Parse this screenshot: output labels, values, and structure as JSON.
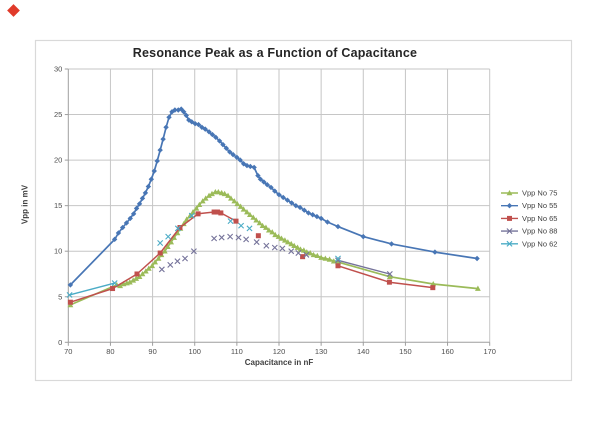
{
  "page": {
    "background": "#ffffff",
    "frame_border_color": "#d9d9d9"
  },
  "decorations": {
    "corner_dot_color": "#e03a2a"
  },
  "chart_data": {
    "type": "line",
    "title": "Resonance Peak as a Function of Capacitance",
    "xlabel": "Capacitance in nF",
    "ylabel": "Vpp in mV",
    "xlim": [
      70,
      170
    ],
    "ylim": [
      0,
      30
    ],
    "xticks": [
      70,
      80,
      90,
      100,
      110,
      120,
      130,
      140,
      150,
      160,
      170
    ],
    "yticks": [
      0,
      5,
      10,
      15,
      20,
      25,
      30
    ],
    "grid": true,
    "legend_position": "right",
    "series": [
      {
        "name": "Vpp No 75",
        "color": "#9BBB59",
        "marker": "triangle",
        "line_width": 1.7,
        "segments": [
          [
            [
              70.5,
              4.1
            ],
            [
              81.5,
              6.3
            ],
            [
              82.3,
              6.2
            ],
            [
              83.1,
              6.4
            ],
            [
              83.9,
              6.5
            ],
            [
              84.6,
              6.6
            ],
            [
              85.4,
              6.8
            ],
            [
              86.1,
              7.0
            ],
            [
              86.9,
              7.2
            ],
            [
              87.6,
              7.5
            ],
            [
              88.4,
              7.8
            ],
            [
              89.1,
              8.1
            ],
            [
              89.9,
              8.4
            ],
            [
              90.6,
              8.8
            ],
            [
              91.4,
              9.2
            ],
            [
              92.1,
              9.6
            ],
            [
              92.9,
              10.0
            ],
            [
              93.6,
              10.5
            ],
            [
              94.4,
              11.0
            ],
            [
              95.1,
              11.5
            ],
            [
              95.9,
              12.0
            ],
            [
              96.6,
              12.5
            ],
            [
              97.4,
              13.0
            ],
            [
              98.1,
              13.5
            ],
            [
              98.9,
              13.9
            ],
            [
              99.6,
              14.3
            ],
            [
              100.4,
              14.7
            ],
            [
              101.1,
              15.1
            ],
            [
              101.9,
              15.5
            ],
            [
              102.6,
              15.8
            ],
            [
              103.4,
              16.1
            ],
            [
              104.1,
              16.3
            ],
            [
              104.9,
              16.5
            ],
            [
              105.6,
              16.5
            ],
            [
              106.4,
              16.4
            ],
            [
              107.1,
              16.3
            ],
            [
              107.9,
              16.1
            ],
            [
              108.6,
              15.8
            ],
            [
              109.4,
              15.5
            ],
            [
              110.1,
              15.2
            ],
            [
              110.9,
              14.9
            ],
            [
              111.6,
              14.6
            ],
            [
              112.4,
              14.3
            ],
            [
              113.1,
              14.0
            ],
            [
              113.9,
              13.7
            ],
            [
              114.6,
              13.4
            ],
            [
              115.4,
              13.1
            ],
            [
              116.1,
              12.8
            ],
            [
              116.9,
              12.6
            ],
            [
              117.6,
              12.3
            ],
            [
              118.4,
              12.1
            ],
            [
              119.1,
              11.8
            ],
            [
              119.9,
              11.6
            ],
            [
              120.6,
              11.4
            ],
            [
              121.4,
              11.2
            ],
            [
              122.1,
              11.0
            ],
            [
              122.9,
              10.8
            ],
            [
              123.6,
              10.6
            ],
            [
              124.4,
              10.4
            ],
            [
              125.1,
              10.2
            ],
            [
              125.9,
              10.1
            ],
            [
              126.6,
              9.9
            ],
            [
              127.4,
              9.8
            ],
            [
              128.2,
              9.6
            ],
            [
              129.1,
              9.5
            ],
            [
              130.0,
              9.3
            ],
            [
              131.0,
              9.2
            ],
            [
              132.0,
              9.1
            ],
            [
              133.0,
              8.9
            ],
            [
              134.0,
              8.8
            ],
            [
              146.3,
              7.2
            ],
            [
              156.6,
              6.4
            ],
            [
              167.2,
              5.9
            ]
          ]
        ],
        "points": []
      },
      {
        "name": "Vpp No 55",
        "color": "#4876B5",
        "marker": "diamond",
        "line_width": 1.7,
        "segments": [
          [
            [
              70.5,
              6.3
            ],
            [
              81.0,
              11.3
            ],
            [
              81.9,
              12.0
            ],
            [
              82.9,
              12.6
            ],
            [
              83.8,
              13.1
            ],
            [
              84.7,
              13.6
            ],
            [
              85.5,
              14.1
            ],
            [
              86.2,
              14.7
            ],
            [
              86.9,
              15.2
            ],
            [
              87.6,
              15.8
            ],
            [
              88.3,
              16.4
            ],
            [
              89.0,
              17.1
            ],
            [
              89.7,
              17.9
            ],
            [
              90.4,
              18.8
            ],
            [
              91.1,
              19.9
            ],
            [
              91.8,
              21.1
            ],
            [
              92.5,
              22.3
            ],
            [
              93.2,
              23.6
            ],
            [
              93.9,
              24.7
            ],
            [
              94.6,
              25.3
            ],
            [
              95.3,
              25.5
            ],
            [
              96.1,
              25.5
            ],
            [
              96.8,
              25.6
            ],
            [
              97.4,
              25.3
            ],
            [
              98.0,
              24.9
            ],
            [
              98.6,
              24.4
            ],
            [
              99.3,
              24.2
            ],
            [
              100.1,
              24.0
            ],
            [
              100.9,
              23.9
            ],
            [
              101.7,
              23.6
            ],
            [
              102.5,
              23.4
            ],
            [
              103.4,
              23.1
            ],
            [
              104.2,
              22.8
            ],
            [
              105.0,
              22.5
            ],
            [
              105.9,
              22.1
            ],
            [
              106.7,
              21.7
            ],
            [
              107.5,
              21.3
            ],
            [
              108.3,
              20.9
            ],
            [
              109.1,
              20.6
            ],
            [
              110.0,
              20.3
            ],
            [
              110.8,
              20.0
            ],
            [
              111.6,
              19.6
            ],
            [
              112.4,
              19.4
            ],
            [
              113.2,
              19.3
            ],
            [
              114.1,
              19.2
            ],
            [
              115.0,
              18.3
            ],
            [
              115.6,
              17.9
            ],
            [
              116.4,
              17.6
            ],
            [
              117.2,
              17.3
            ],
            [
              118.1,
              17.0
            ],
            [
              119.0,
              16.6
            ],
            [
              120.0,
              16.2
            ],
            [
              121.0,
              15.9
            ],
            [
              122.0,
              15.6
            ],
            [
              123.0,
              15.3
            ],
            [
              124.0,
              15.0
            ],
            [
              125.0,
              14.8
            ],
            [
              126.0,
              14.5
            ],
            [
              127.0,
              14.2
            ],
            [
              128.0,
              14.0
            ],
            [
              129.0,
              13.8
            ],
            [
              130.0,
              13.6
            ],
            [
              131.5,
              13.2
            ],
            [
              134.0,
              12.7
            ],
            [
              140.0,
              11.6
            ],
            [
              146.7,
              10.8
            ],
            [
              157.0,
              9.9
            ],
            [
              167.0,
              9.2
            ]
          ]
        ],
        "points": []
      },
      {
        "name": "Vpp No 65",
        "color": "#C0504D",
        "marker": "square",
        "line_width": 1.5,
        "segments": [
          [
            [
              70.5,
              4.4
            ],
            [
              80.5,
              5.9
            ],
            [
              86.3,
              7.5
            ],
            [
              91.8,
              9.8
            ],
            [
              96.5,
              12.6
            ],
            [
              100.8,
              14.1
            ],
            [
              104.6,
              14.3
            ],
            [
              105.4,
              14.3
            ],
            [
              106.2,
              14.2
            ],
            [
              109.8,
              13.3
            ]
          ],
          [
            [
              134.0,
              8.4
            ],
            [
              146.2,
              6.6
            ],
            [
              156.5,
              6.0
            ]
          ]
        ],
        "points": [
          [
            115.1,
            11.7
          ],
          [
            125.6,
            9.4
          ]
        ]
      },
      {
        "name": "Vpp No 88",
        "color": "#75739A",
        "marker": "x",
        "line_width": 1.4,
        "segments": [
          [
            [
              134.0,
              9.0
            ],
            [
              146.3,
              7.5
            ]
          ]
        ],
        "points": [
          [
            92.2,
            8.0
          ],
          [
            94.2,
            8.5
          ],
          [
            95.9,
            8.9
          ],
          [
            97.7,
            9.2
          ],
          [
            99.8,
            10.0
          ],
          [
            104.6,
            11.4
          ],
          [
            106.4,
            11.5
          ],
          [
            108.4,
            11.6
          ],
          [
            110.4,
            11.5
          ],
          [
            112.2,
            11.3
          ],
          [
            114.7,
            11.0
          ],
          [
            117.0,
            10.6
          ],
          [
            119.0,
            10.4
          ],
          [
            120.8,
            10.3
          ],
          [
            122.9,
            10.0
          ],
          [
            124.6,
            9.8
          ],
          [
            126.5,
            9.6
          ]
        ]
      },
      {
        "name": "Vpp No 62",
        "color": "#4BACC6",
        "marker": "x",
        "line_width": 1.4,
        "segments": [
          [
            [
              70.3,
              5.2
            ],
            [
              81.0,
              6.5
            ]
          ]
        ],
        "points": [
          [
            91.8,
            10.9
          ],
          [
            93.7,
            11.6
          ],
          [
            96.0,
            12.5
          ],
          [
            99.3,
            13.9
          ],
          [
            108.5,
            13.3
          ],
          [
            111.0,
            12.8
          ],
          [
            113.0,
            12.5
          ],
          [
            134.0,
            9.2
          ]
        ]
      }
    ]
  }
}
